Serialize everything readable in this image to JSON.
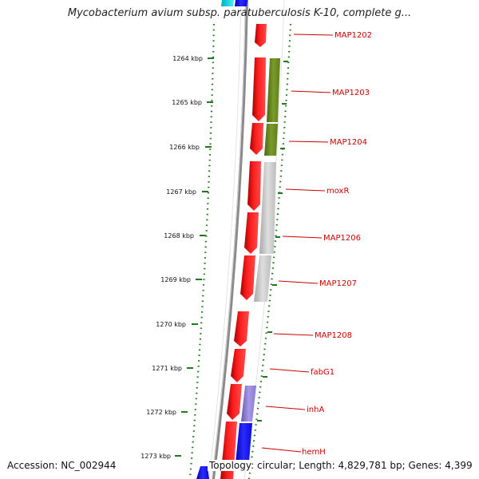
{
  "title": "Mycobacterium avium subsp. paratuberculosis K-10, complete g...",
  "footer": {
    "accession": "Accession: NC_002944",
    "summary": "Topology: circular; Length: 4,829,781 bp; Genes: 4,399"
  },
  "scale": {
    "unit": "kbp",
    "ticks": [
      "1264 kbp",
      "1265 kbp",
      "1266 kbp",
      "1267 kbp",
      "1268 kbp",
      "1269 kbp",
      "1270 kbp",
      "1271 kbp",
      "1272 kbp",
      "1273 kbp"
    ]
  },
  "gene_labels": [
    "MAP1202",
    "MAP1203",
    "MAP1204",
    "moxR",
    "MAP1206",
    "MAP1207",
    "MAP1208",
    "fabG1",
    "inhA",
    "hemH"
  ],
  "colors": {
    "forward_cds": "#ff0000",
    "reverse_green": "#6b8e23",
    "reverse_gray": "#c0c0c0",
    "reverse_lavender": "#9080d8",
    "reverse_blue": "#0000ff",
    "top_cyan": "#00d8e0",
    "backbone": "#888888",
    "tick_marks": "#1f7a1f",
    "label_text": "#cc0000"
  }
}
